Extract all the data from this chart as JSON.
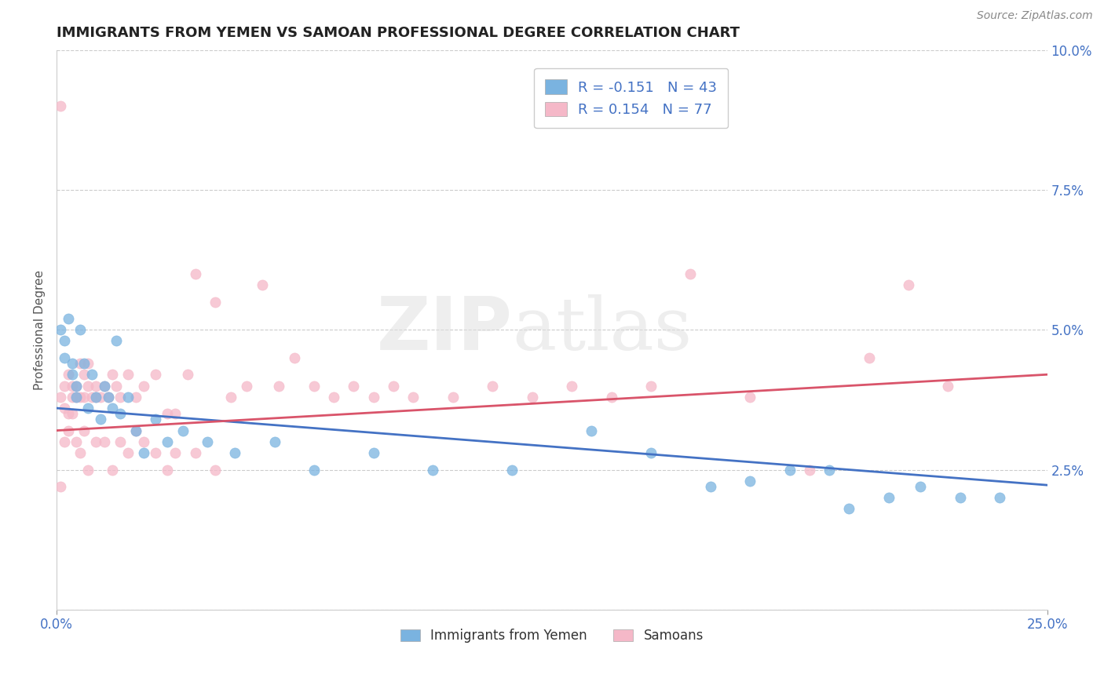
{
  "title": "IMMIGRANTS FROM YEMEN VS SAMOAN PROFESSIONAL DEGREE CORRELATION CHART",
  "source_text": "Source: ZipAtlas.com",
  "ylabel": "Professional Degree",
  "xlim": [
    0.0,
    0.25
  ],
  "ylim": [
    0.0,
    0.1
  ],
  "xtick_vals": [
    0.0,
    0.25
  ],
  "xtick_labels": [
    "0.0%",
    "25.0%"
  ],
  "ytick_vals": [
    0.0,
    0.025,
    0.05,
    0.075,
    0.1
  ],
  "ytick_labels": [
    "",
    "2.5%",
    "5.0%",
    "7.5%",
    "10.0%"
  ],
  "color_blue": "#7ab3e0",
  "color_pink": "#f5b8c8",
  "line_color_blue": "#4472c4",
  "line_color_pink": "#d9546a",
  "label1": "Immigrants from Yemen",
  "label2": "Samoans",
  "R1": -0.151,
  "N1": 43,
  "R2": 0.154,
  "N2": 77,
  "blue_intercept": 0.036,
  "blue_slope": -0.055,
  "pink_intercept": 0.032,
  "pink_slope": 0.04,
  "scatter_blue_x": [
    0.001,
    0.002,
    0.002,
    0.003,
    0.004,
    0.004,
    0.005,
    0.005,
    0.006,
    0.007,
    0.008,
    0.009,
    0.01,
    0.011,
    0.012,
    0.013,
    0.014,
    0.015,
    0.016,
    0.018,
    0.02,
    0.022,
    0.025,
    0.028,
    0.032,
    0.038,
    0.045,
    0.055,
    0.065,
    0.08,
    0.095,
    0.115,
    0.135,
    0.15,
    0.165,
    0.175,
    0.185,
    0.195,
    0.2,
    0.21,
    0.218,
    0.228,
    0.238
  ],
  "scatter_blue_y": [
    0.05,
    0.048,
    0.045,
    0.052,
    0.044,
    0.042,
    0.04,
    0.038,
    0.05,
    0.044,
    0.036,
    0.042,
    0.038,
    0.034,
    0.04,
    0.038,
    0.036,
    0.048,
    0.035,
    0.038,
    0.032,
    0.028,
    0.034,
    0.03,
    0.032,
    0.03,
    0.028,
    0.03,
    0.025,
    0.028,
    0.025,
    0.025,
    0.032,
    0.028,
    0.022,
    0.023,
    0.025,
    0.025,
    0.018,
    0.02,
    0.022,
    0.02,
    0.02
  ],
  "scatter_pink_x": [
    0.001,
    0.001,
    0.002,
    0.002,
    0.003,
    0.003,
    0.004,
    0.004,
    0.005,
    0.005,
    0.006,
    0.006,
    0.007,
    0.007,
    0.008,
    0.008,
    0.009,
    0.01,
    0.01,
    0.011,
    0.012,
    0.013,
    0.014,
    0.015,
    0.016,
    0.018,
    0.02,
    0.022,
    0.025,
    0.028,
    0.03,
    0.033,
    0.035,
    0.04,
    0.044,
    0.048,
    0.052,
    0.056,
    0.06,
    0.065,
    0.07,
    0.075,
    0.08,
    0.085,
    0.09,
    0.1,
    0.11,
    0.12,
    0.13,
    0.14,
    0.15,
    0.16,
    0.175,
    0.19,
    0.205,
    0.215,
    0.225,
    0.003,
    0.002,
    0.001,
    0.004,
    0.005,
    0.006,
    0.007,
    0.008,
    0.01,
    0.012,
    0.014,
    0.016,
    0.018,
    0.02,
    0.022,
    0.025,
    0.028,
    0.03,
    0.035,
    0.04
  ],
  "scatter_pink_y": [
    0.09,
    0.038,
    0.04,
    0.036,
    0.042,
    0.035,
    0.04,
    0.038,
    0.04,
    0.038,
    0.044,
    0.038,
    0.042,
    0.038,
    0.044,
    0.04,
    0.038,
    0.04,
    0.038,
    0.038,
    0.04,
    0.038,
    0.042,
    0.04,
    0.038,
    0.042,
    0.038,
    0.04,
    0.042,
    0.035,
    0.035,
    0.042,
    0.06,
    0.055,
    0.038,
    0.04,
    0.058,
    0.04,
    0.045,
    0.04,
    0.038,
    0.04,
    0.038,
    0.04,
    0.038,
    0.038,
    0.04,
    0.038,
    0.04,
    0.038,
    0.04,
    0.06,
    0.038,
    0.025,
    0.045,
    0.058,
    0.04,
    0.032,
    0.03,
    0.022,
    0.035,
    0.03,
    0.028,
    0.032,
    0.025,
    0.03,
    0.03,
    0.025,
    0.03,
    0.028,
    0.032,
    0.03,
    0.028,
    0.025,
    0.028,
    0.028,
    0.025
  ],
  "watermark_zip": "ZIP",
  "watermark_atlas": "atlas",
  "background_color": "#ffffff",
  "grid_color": "#cccccc",
  "title_fontsize": 13,
  "tick_fontsize": 12,
  "legend_fontsize": 13,
  "source_fontsize": 10
}
